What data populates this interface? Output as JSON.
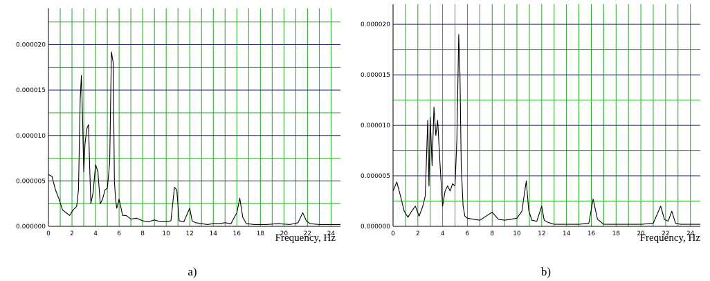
{
  "chart_data": [
    {
      "type": "line",
      "panel_label": "a)",
      "xlabel": "Frequency, Hz",
      "ylabel": "",
      "xlim": [
        0,
        24.8
      ],
      "ylim": [
        0,
        2.4e-05
      ],
      "grid": true,
      "x_ticks": [
        {
          "value": 0,
          "label": "0"
        },
        {
          "value": 2,
          "label": "2"
        },
        {
          "value": 4,
          "label": "4"
        },
        {
          "value": 6,
          "label": "6"
        },
        {
          "value": 8,
          "label": "8"
        },
        {
          "value": 10,
          "label": "10"
        },
        {
          "value": 12,
          "label": "12"
        },
        {
          "value": 14,
          "label": "14"
        },
        {
          "value": 16,
          "label": "16"
        },
        {
          "value": 18,
          "label": "18"
        },
        {
          "value": 20,
          "label": "20"
        },
        {
          "value": 22,
          "label": "22"
        },
        {
          "value": 24,
          "label": "24"
        }
      ],
      "y_ticks": [
        {
          "value": 0.0,
          "label": "0.000000"
        },
        {
          "value": 5e-06,
          "label": "0.000005"
        },
        {
          "value": 1e-05,
          "label": "0.000010"
        },
        {
          "value": 1.5e-05,
          "label": "0.000015"
        },
        {
          "value": 2e-05,
          "label": "0.000020"
        }
      ],
      "series": [
        {
          "x": [
            0,
            0.3,
            0.6,
            0.9,
            1.2,
            1.5,
            1.8,
            2.1,
            2.4,
            2.55,
            2.7,
            2.8,
            2.9,
            3.0,
            3.1,
            3.25,
            3.4,
            3.5,
            3.6,
            3.8,
            4.0,
            4.2,
            4.4,
            4.6,
            4.8,
            5.0,
            5.2,
            5.35,
            5.5,
            5.6,
            5.7,
            5.8,
            6.0,
            6.3,
            6.6,
            7.0,
            7.5,
            8.0,
            8.5,
            9.0,
            9.5,
            10.0,
            10.4,
            10.7,
            10.9,
            11.1,
            11.5,
            12.0,
            12.2,
            12.5,
            13.0,
            13.5,
            14.0,
            14.5,
            15.0,
            15.5,
            16.0,
            16.25,
            16.5,
            16.8,
            17.5,
            18.5,
            19.5,
            20.5,
            21.2,
            21.6,
            21.9,
            22.2,
            23.0,
            24.0,
            24.8
          ],
          "y": [
            5.7e-06,
            5.5e-06,
            4e-06,
            3e-06,
            1.8e-06,
            1.5e-06,
            1.2e-06,
            1.8e-06,
            2.2e-06,
            4e-06,
            1.4e-05,
            1.66e-05,
            1.2e-05,
            6e-06,
            9e-06,
            1.07e-05,
            1.12e-05,
            6.5e-06,
            2.5e-06,
            3.8e-06,
            6.8e-06,
            6e-06,
            2.5e-06,
            3e-06,
            4e-06,
            4.2e-06,
            7e-06,
            1.92e-05,
            1.8e-05,
            5e-06,
            3e-06,
            2e-06,
            3e-06,
            1.2e-06,
            1.2e-06,
            8e-07,
            9e-07,
            6e-07,
            5e-07,
            7e-07,
            5e-07,
            5e-07,
            6e-07,
            4.3e-06,
            4e-06,
            6e-07,
            5e-07,
            2e-06,
            6e-07,
            4e-07,
            3e-07,
            2e-07,
            3e-07,
            3e-07,
            4e-07,
            3e-07,
            1.5e-06,
            3.1e-06,
            1e-06,
            3e-07,
            2e-07,
            2e-07,
            3e-07,
            2e-07,
            4e-07,
            1.5e-06,
            6e-07,
            3e-07,
            2e-07,
            2e-07,
            2e-07
          ]
        }
      ]
    },
    {
      "type": "line",
      "panel_label": "b)",
      "xlabel": "Frequency, Hz",
      "ylabel": "",
      "xlim": [
        0,
        24.8
      ],
      "ylim": [
        0,
        2.2e-05
      ],
      "grid": true,
      "x_ticks": [
        {
          "value": 0,
          "label": "0"
        },
        {
          "value": 2,
          "label": "2"
        },
        {
          "value": 4,
          "label": "4"
        },
        {
          "value": 6,
          "label": "6"
        },
        {
          "value": 8,
          "label": "8"
        },
        {
          "value": 10,
          "label": "10"
        },
        {
          "value": 12,
          "label": "12"
        },
        {
          "value": 14,
          "label": "14"
        },
        {
          "value": 16,
          "label": "16"
        },
        {
          "value": 18,
          "label": "18"
        },
        {
          "value": 20,
          "label": "20"
        },
        {
          "value": 22,
          "label": "22"
        },
        {
          "value": 24,
          "label": "24"
        }
      ],
      "y_ticks": [
        {
          "value": 0.0,
          "label": "0.000000"
        },
        {
          "value": 5e-06,
          "label": "0.000005"
        },
        {
          "value": 1e-05,
          "label": "0.000010"
        },
        {
          "value": 1.5e-05,
          "label": "0.000015"
        },
        {
          "value": 2e-05,
          "label": "0.000020"
        }
      ],
      "series": [
        {
          "x": [
            0,
            0.3,
            0.6,
            0.9,
            1.2,
            1.5,
            1.8,
            2.1,
            2.4,
            2.6,
            2.8,
            2.9,
            3.0,
            3.15,
            3.3,
            3.45,
            3.6,
            3.8,
            4.0,
            4.2,
            4.4,
            4.6,
            4.8,
            5.0,
            5.15,
            5.3,
            5.4,
            5.5,
            5.65,
            5.8,
            6.0,
            6.5,
            7.0,
            7.5,
            8.0,
            8.5,
            9.0,
            9.5,
            10.0,
            10.4,
            10.75,
            10.95,
            11.2,
            11.6,
            12.0,
            12.2,
            12.5,
            13.0,
            14.0,
            15.0,
            15.8,
            16.15,
            16.5,
            17.0,
            18.0,
            19.0,
            20.0,
            21.0,
            21.6,
            21.9,
            22.2,
            22.5,
            22.8,
            23.2,
            24.0,
            24.8
          ],
          "y": [
            3.5e-06,
            4.4e-06,
            3e-06,
            1.5e-06,
            9e-07,
            1.5e-06,
            2e-06,
            1e-06,
            2e-06,
            3e-06,
            1.05e-05,
            4e-06,
            1.08e-05,
            6e-06,
            1.18e-05,
            9e-06,
            1.05e-05,
            6e-06,
            2e-06,
            3.5e-06,
            4e-06,
            3.5e-06,
            4.2e-06,
            4e-06,
            8.5e-06,
            1.9e-05,
            1.5e-05,
            6e-06,
            2e-06,
            1e-06,
            8e-07,
            7e-07,
            6e-07,
            1e-06,
            1.4e-06,
            7e-07,
            6e-07,
            7e-07,
            8e-07,
            1.5e-06,
            4.5e-06,
            1.6e-06,
            6e-07,
            5e-07,
            2e-06,
            6e-07,
            4e-07,
            2e-07,
            2e-07,
            2e-07,
            3e-07,
            2.7e-06,
            7e-07,
            2e-07,
            2e-07,
            2e-07,
            2e-07,
            3e-07,
            2e-06,
            7e-07,
            5e-07,
            1.5e-06,
            3e-07,
            2e-07,
            2e-07,
            2e-07
          ]
        }
      ]
    }
  ],
  "colors": {
    "grid_vertical": "#22a622",
    "grid_horizontal_major": "#1f1f7a",
    "grid_horizontal_minor": "#22a622",
    "line": "#000000"
  }
}
